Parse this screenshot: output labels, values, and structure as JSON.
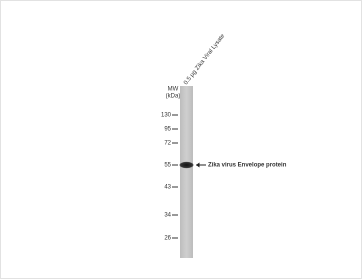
{
  "blot": {
    "lane_label": "0.5 µg Zika Viral Lysate",
    "mw_header": [
      "MW",
      "(kDa)"
    ],
    "markers": [
      130,
      95,
      72,
      55,
      43,
      34,
      26
    ],
    "band_label": "Zika virus Envelope protein"
  }
}
